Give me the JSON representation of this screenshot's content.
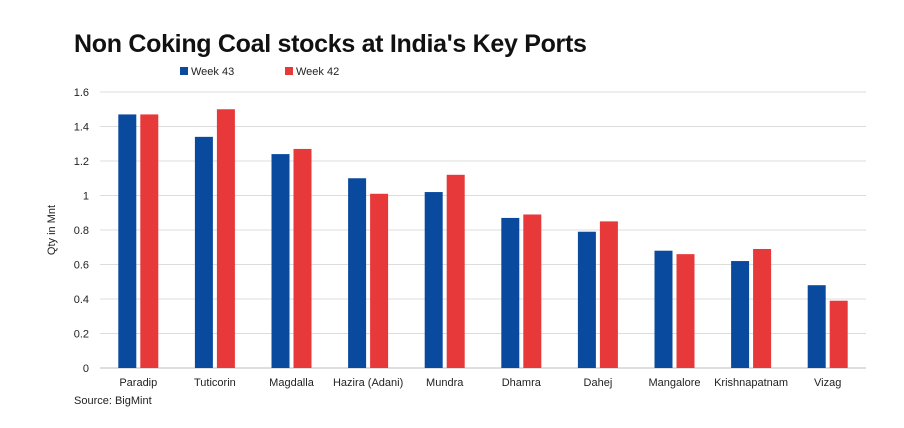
{
  "chart_data": {
    "type": "bar",
    "title": "Non Coking Coal stocks at India's Key Ports",
    "ylabel": "Qty in Mnt",
    "xlabel": "",
    "ylim": [
      0,
      1.6
    ],
    "yticks": [
      "0",
      "0.2",
      "0.4",
      "0.6",
      "0.8",
      "1",
      "1.2",
      "1.4",
      "1.6"
    ],
    "grid": true,
    "legend_position": "top-left",
    "categories": [
      "Paradip",
      "Tuticorin",
      "Magdalla",
      "Hazira (Adani)",
      "Mundra",
      "Dhamra",
      "Dahej",
      "Mangalore",
      "Krishnapatnam",
      "Vizag"
    ],
    "series": [
      {
        "name": "Week 43",
        "color": "#0a4a9e",
        "values": [
          1.47,
          1.34,
          1.24,
          1.1,
          1.02,
          0.87,
          0.79,
          0.68,
          0.62,
          0.48
        ]
      },
      {
        "name": "Week 42",
        "color": "#e8393a",
        "values": [
          1.47,
          1.5,
          1.27,
          1.01,
          1.12,
          0.89,
          0.85,
          0.66,
          0.69,
          0.39
        ]
      }
    ],
    "source": "Source: BigMint"
  }
}
